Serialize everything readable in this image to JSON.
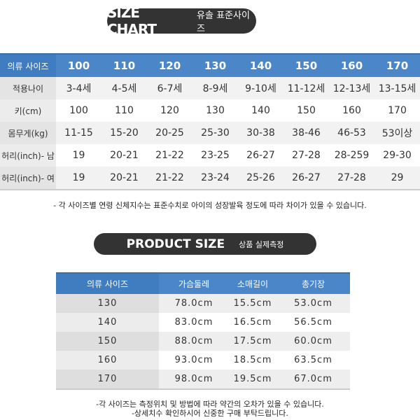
{
  "size_chart": {
    "title_en": "SIZE CHART",
    "title_ko": "유솔 표준사이즈",
    "header": [
      "의류 사이즈",
      "100",
      "110",
      "120",
      "130",
      "140",
      "150",
      "160",
      "170"
    ],
    "rows": [
      [
        "적용나이",
        "3-4세",
        "4-5세",
        "6-7세",
        "8-9세",
        "9-10세",
        "11-12세",
        "12-13세",
        "13-15세"
      ],
      [
        "키(cm)",
        "100",
        "110",
        "120",
        "130",
        "140",
        "150",
        "160",
        "170"
      ],
      [
        "몸무게(kg)",
        "11-15",
        "15-20",
        "20-25",
        "25-30",
        "30-38",
        "38-46",
        "46-53",
        "53이상"
      ],
      [
        "허리(inch)- 남",
        "19",
        "20-21",
        "21-22",
        "23-25",
        "26-27",
        "27-28",
        "28-259",
        "29-30"
      ],
      [
        "허리(inch)- 여",
        "19",
        "20-21",
        "21-22",
        "23-24",
        "25-26",
        "26-27",
        "27-28",
        "29"
      ]
    ],
    "note": "- 각 사이즈별 연령 신체지수는 표준수치로 아이의 성장발육 정도에 따라 차이가 있을 수 있습니다."
  },
  "product_size": {
    "title_en": "PRODUCT SIZE",
    "title_ko": "상품 실제측정",
    "header": [
      "의류 사이즈",
      "가슴둘레",
      "소매길이",
      "총기장"
    ],
    "rows": [
      [
        "130",
        "78.0cm",
        "15.5cm",
        "53.0cm"
      ],
      [
        "140",
        "83.0cm",
        "16.5cm",
        "56.5cm"
      ],
      [
        "150",
        "88.0cm",
        "17.5cm",
        "60.0cm"
      ],
      [
        "160",
        "93.0cm",
        "18.5cm",
        "63.5cm"
      ],
      [
        "170",
        "98.0cm",
        "19.5cm",
        "67.0cm"
      ]
    ],
    "notes": [
      "-각 사이즈는 측정위치 및 방법에 따라 약간의 오차가 있을 수 있습니다.",
      "-상세치수 확인하시어 신중한 구매 부탁드립니다."
    ]
  }
}
